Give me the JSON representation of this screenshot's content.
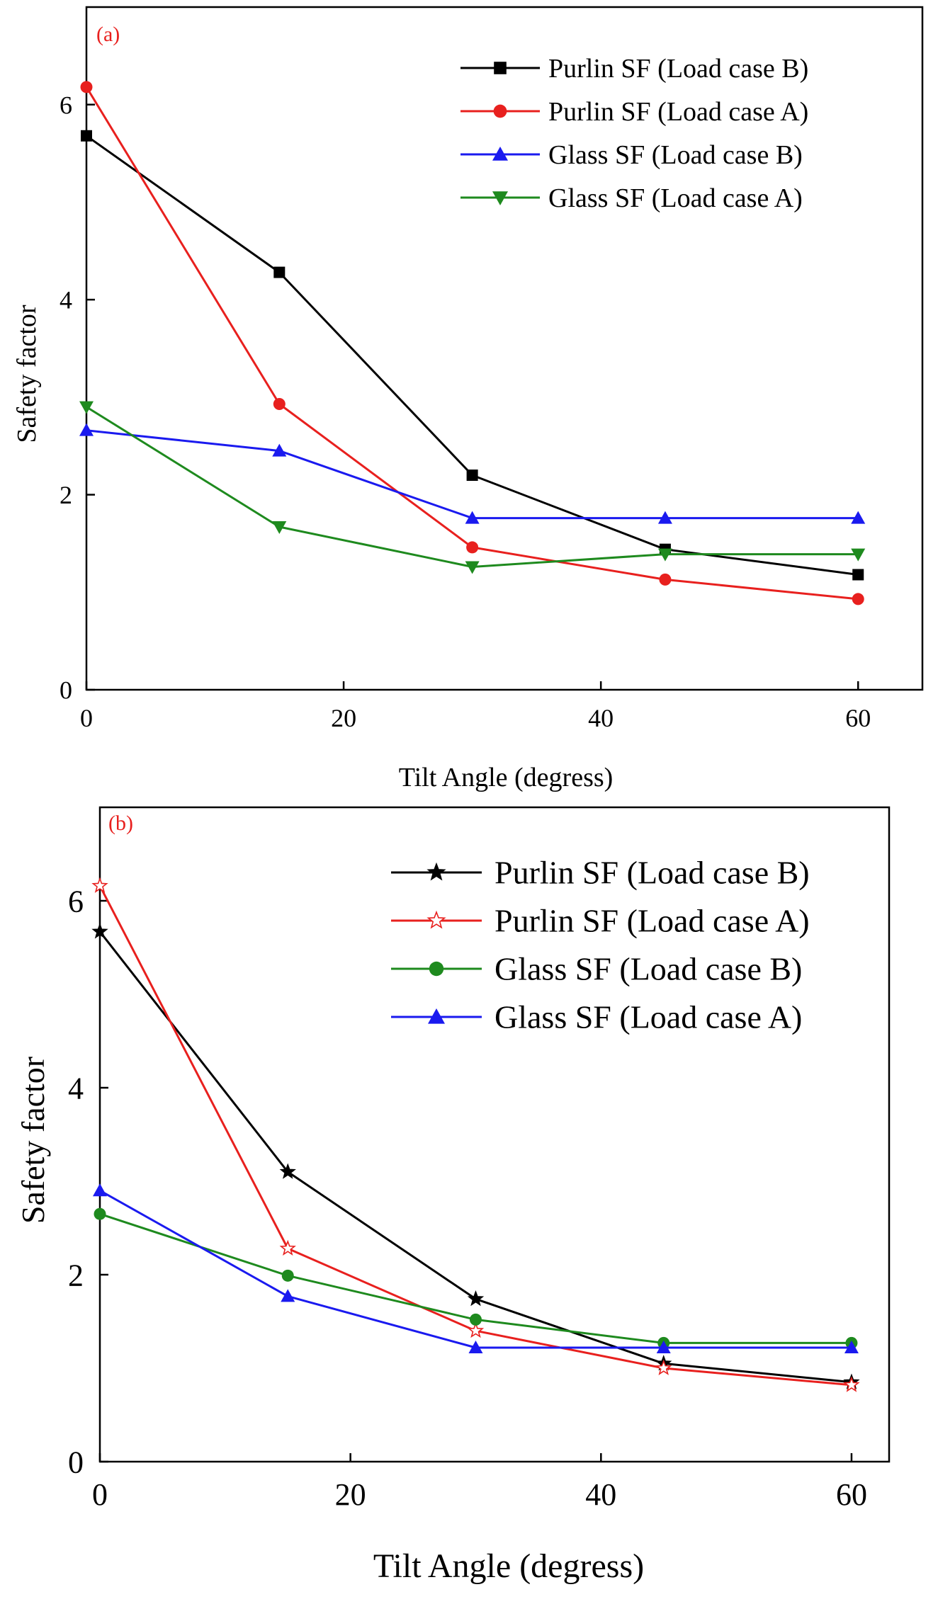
{
  "chart_data": [
    {
      "type": "line",
      "panel_label": "(a)",
      "panel_label_color": "#e8201e",
      "xlabel": "Tilt Angle (degress)",
      "ylabel": "Safety factor",
      "xlim": [
        0,
        65
      ],
      "ylim": [
        0,
        7
      ],
      "xticks": [
        0,
        20,
        40,
        60
      ],
      "xtick_labels": [
        "0",
        "20",
        "40",
        "60"
      ],
      "yticks": [
        0,
        2,
        4,
        6
      ],
      "ytick_labels": [
        "0",
        "2",
        "4",
        "6"
      ],
      "legend_position": "top-right",
      "grid": false,
      "x": [
        0,
        15,
        30,
        45,
        60
      ],
      "series": [
        {
          "name": "Purlin SF (Load case B)",
          "color": "#000000",
          "marker": "square",
          "values": [
            5.68,
            4.28,
            2.2,
            1.44,
            1.18
          ]
        },
        {
          "name": "Purlin SF (Load case A)",
          "color": "#e8201e",
          "marker": "circle",
          "values": [
            6.18,
            2.93,
            1.46,
            1.13,
            0.93
          ]
        },
        {
          "name": "Glass SF (Load case B)",
          "color": "#1a1aef",
          "marker": "triangle-up",
          "values": [
            2.66,
            2.45,
            1.76,
            1.76,
            1.76
          ]
        },
        {
          "name": "Glass SF (Load case A)",
          "color": "#1e8a1e",
          "marker": "triangle-down",
          "values": [
            2.9,
            1.67,
            1.26,
            1.39,
            1.39
          ]
        }
      ]
    },
    {
      "type": "line",
      "panel_label": "(b)",
      "panel_label_color": "#e8201e",
      "xlabel": "Tilt Angle (degress)",
      "ylabel": "Safety factor",
      "xlim": [
        0,
        63
      ],
      "ylim": [
        0,
        7
      ],
      "xticks": [
        0,
        20,
        40,
        60
      ],
      "xtick_labels": [
        "0",
        "20",
        "40",
        "60"
      ],
      "yticks": [
        0,
        2,
        4,
        6
      ],
      "ytick_labels": [
        "0",
        "2",
        "4",
        "6"
      ],
      "legend_position": "top-right",
      "grid": false,
      "x": [
        0,
        15,
        30,
        45,
        60
      ],
      "series": [
        {
          "name": "Purlin SF (Load case B)",
          "color": "#000000",
          "marker": "star-filled",
          "values": [
            5.67,
            3.1,
            1.74,
            1.05,
            0.85
          ]
        },
        {
          "name": "Purlin SF (Load case A)",
          "color": "#e8201e",
          "marker": "star-open",
          "values": [
            6.16,
            2.28,
            1.4,
            1.0,
            0.82
          ]
        },
        {
          "name": "Glass SF (Load case B)",
          "color": "#1e8a1e",
          "marker": "circle",
          "values": [
            2.65,
            1.99,
            1.52,
            1.27,
            1.27
          ]
        },
        {
          "name": "Glass SF (Load case A)",
          "color": "#1a1aef",
          "marker": "triangle-up",
          "values": [
            2.9,
            1.77,
            1.22,
            1.22,
            1.22
          ]
        }
      ]
    }
  ]
}
